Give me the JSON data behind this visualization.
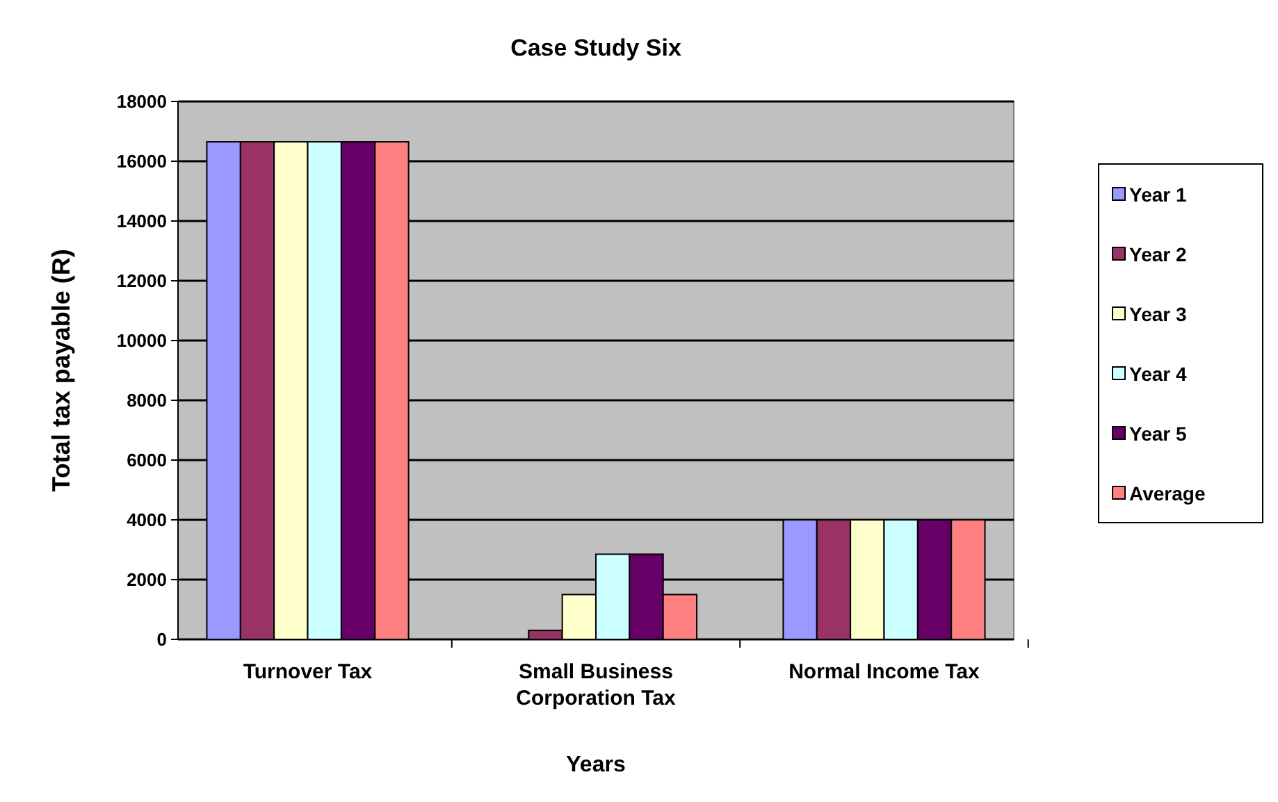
{
  "chart_data": {
    "type": "bar",
    "title": "Case Study Six",
    "xlabel": "Years",
    "ylabel": "Total tax payable (R)",
    "categories": [
      "Turnover Tax",
      "Small Business Corporation Tax",
      "Normal Income Tax"
    ],
    "series": [
      {
        "name": "Year 1",
        "color": "#9999ff",
        "values": [
          16650,
          0,
          4000
        ]
      },
      {
        "name": "Year 2",
        "color": "#993366",
        "values": [
          16650,
          300,
          4000
        ]
      },
      {
        "name": "Year 3",
        "color": "#ffffcc",
        "values": [
          16650,
          1500,
          4000
        ]
      },
      {
        "name": "Year 4",
        "color": "#ccffff",
        "values": [
          16650,
          2850,
          4000
        ]
      },
      {
        "name": "Year 5",
        "color": "#660066",
        "values": [
          16650,
          2850,
          4000
        ]
      },
      {
        "name": "Average",
        "color": "#ff8080",
        "values": [
          16650,
          1500,
          4000
        ]
      }
    ],
    "ylim": [
      0,
      18000
    ],
    "yticks": [
      0,
      2000,
      4000,
      6000,
      8000,
      10000,
      12000,
      14000,
      16000,
      18000
    ],
    "grid": "y",
    "legend": "right"
  }
}
